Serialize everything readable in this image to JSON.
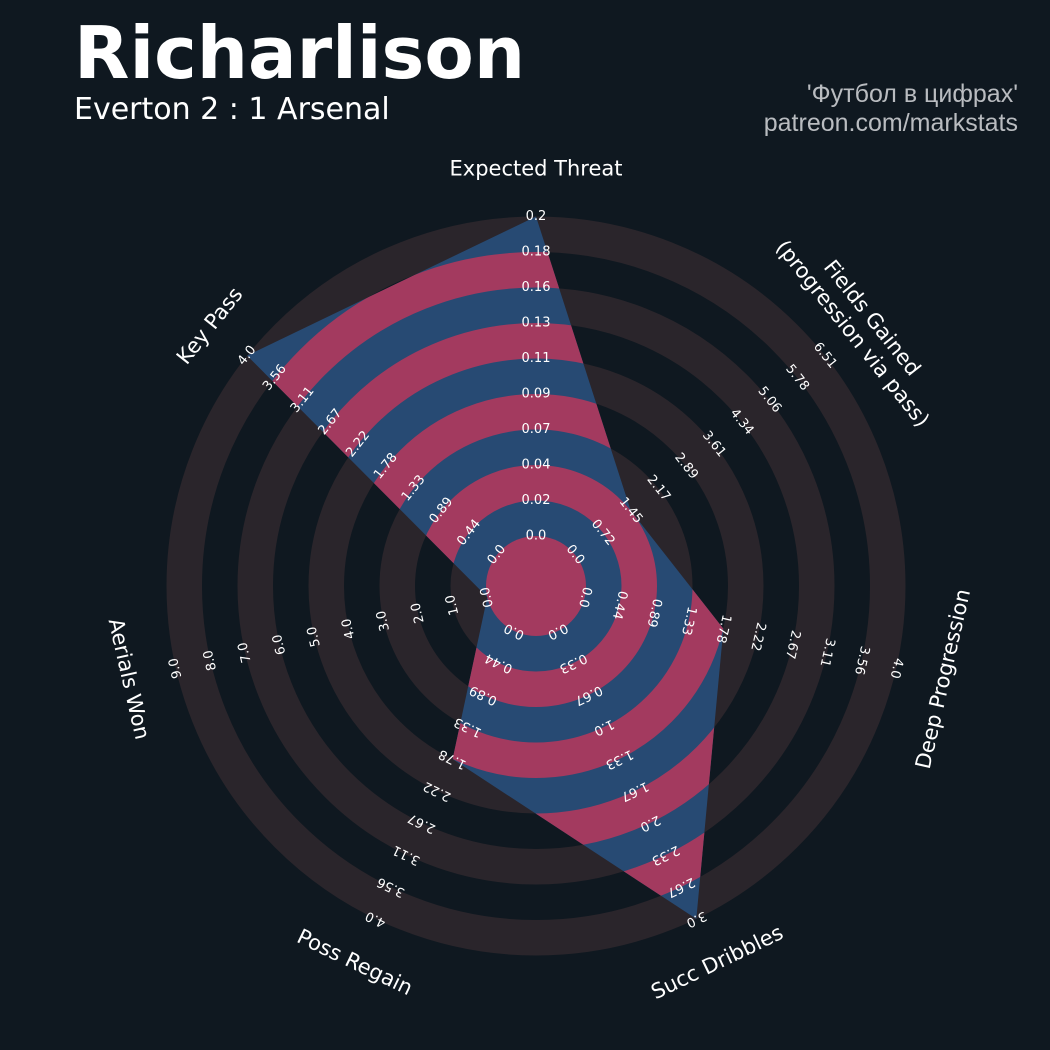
{
  "header": {
    "title": "Richarlison",
    "subtitle": "Everton 2 : 1 Arsenal",
    "credit_line1": "'Футбол в цифрах'",
    "credit_line2": "patreon.com/markstats"
  },
  "colors": {
    "background": "#0f1820",
    "ring": "#2a252b",
    "fill": "#274a73",
    "fill_accent": "#a33a5f",
    "text": "#ffffff"
  },
  "chart_data": {
    "type": "radar",
    "player": "Richarlison",
    "axes": [
      {
        "label": "Expected Threat",
        "value": 0.2,
        "ticks": [
          "0.0",
          "0.02",
          "0.04",
          "0.07",
          "0.09",
          "0.11",
          "0.13",
          "0.16",
          "0.18",
          "0.2"
        ]
      },
      {
        "label": "Fields Gained\n(progression via pass)",
        "value": 1.45,
        "ticks": [
          "0.0",
          "0.72",
          "1.45",
          "2.17",
          "2.89",
          "3.61",
          "4.34",
          "5.06",
          "5.78",
          "6.51"
        ]
      },
      {
        "label": "Deep Progression",
        "value": 1.78,
        "ticks": [
          "0.0",
          "0.44",
          "0.89",
          "1.33",
          "1.78",
          "2.22",
          "2.67",
          "3.11",
          "3.56",
          "4.0"
        ]
      },
      {
        "label": "Succ Dribbles",
        "value": 3.0,
        "ticks": [
          "0.0",
          "0.33",
          "0.67",
          "1.0",
          "1.33",
          "1.67",
          "2.0",
          "2.33",
          "2.67",
          "3.0"
        ]
      },
      {
        "label": "Poss Regain",
        "value": 1.78,
        "ticks": [
          "0.0",
          "0.44",
          "0.89",
          "1.33",
          "1.78",
          "2.22",
          "2.67",
          "3.11",
          "3.56",
          "4.0"
        ]
      },
      {
        "label": "Aerials Won",
        "value": 0.0,
        "ticks": [
          "0.0",
          "1.0",
          "2.0",
          "3.0",
          "4.0",
          "5.0",
          "6.0",
          "7.0",
          "8.0",
          "9.0"
        ]
      },
      {
        "label": "Key Pass",
        "value": 4.0,
        "ticks": [
          "0.0",
          "0.44",
          "0.89",
          "1.33",
          "1.78",
          "2.22",
          "2.67",
          "3.11",
          "3.56",
          "4.0"
        ]
      }
    ]
  }
}
